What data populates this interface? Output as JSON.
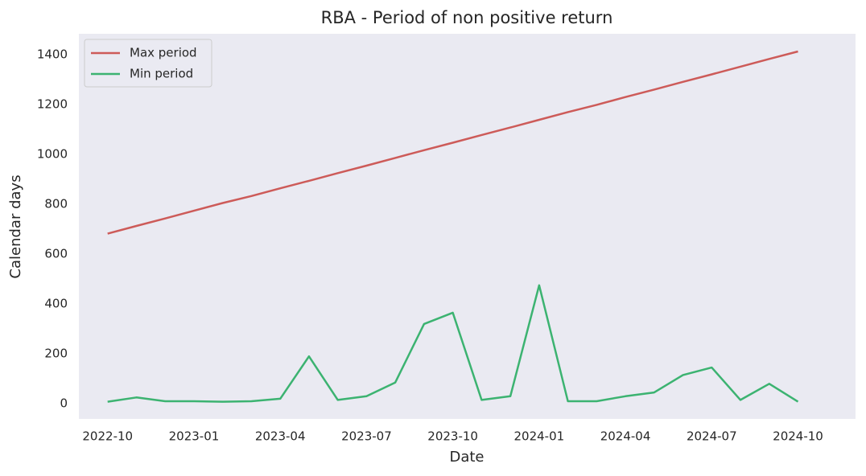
{
  "chart_data": {
    "type": "line",
    "title": "RBA - Period of non positive return",
    "xlabel": "Date",
    "ylabel": "Calendar days",
    "x": [
      "2022-10",
      "2022-11",
      "2022-12",
      "2023-01",
      "2023-02",
      "2023-03",
      "2023-04",
      "2023-05",
      "2023-06",
      "2023-07",
      "2023-08",
      "2023-09",
      "2023-10",
      "2023-11",
      "2023-12",
      "2024-01",
      "2024-02",
      "2024-03",
      "2024-04",
      "2024-05",
      "2024-06",
      "2024-07",
      "2024-08",
      "2024-09",
      "2024-10"
    ],
    "series": [
      {
        "name": "Max period",
        "color": "#cd5b59",
        "values": [
          682,
          713,
          743,
          774,
          805,
          833,
          864,
          894,
          925,
          955,
          986,
          1017,
          1047,
          1078,
          1108,
          1139,
          1170,
          1199,
          1230,
          1260,
          1291,
          1321,
          1352,
          1383,
          1413
        ]
      },
      {
        "name": "Min period",
        "color": "#3cb371",
        "values": [
          8,
          25,
          10,
          10,
          8,
          10,
          20,
          190,
          15,
          30,
          85,
          320,
          365,
          15,
          30,
          475,
          10,
          10,
          30,
          45,
          115,
          145,
          15,
          80,
          8
        ]
      }
    ],
    "xlim": [
      "2022-09",
      "2024-12"
    ],
    "xticks": [
      "2022-10",
      "2023-01",
      "2023-04",
      "2023-07",
      "2023-10",
      "2024-01",
      "2024-04",
      "2024-07",
      "2024-10"
    ],
    "ylim": [
      -61,
      1484
    ],
    "yticks": [
      0,
      200,
      400,
      600,
      800,
      1000,
      1200,
      1400
    ],
    "grid": false,
    "legend": "upper-left"
  }
}
